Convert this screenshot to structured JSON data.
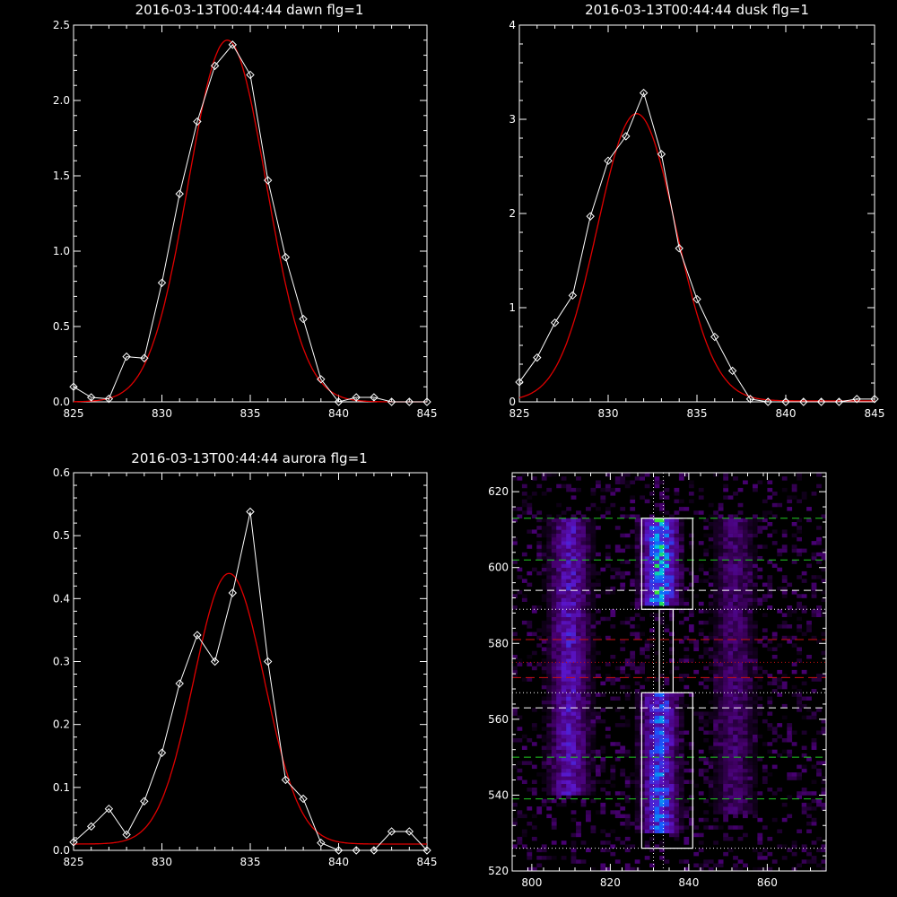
{
  "colors": {
    "background": "#000000",
    "axes": "#ffffff",
    "data": "#ffffff",
    "fit": "#e00000",
    "hline_green": "#22cc22",
    "hline_white": "#ffffff",
    "hline_red": "#cc1111"
  },
  "chart_data": [
    {
      "id": "dawn",
      "type": "line",
      "title": "2016-03-13T00:44:44 dawn flg=1",
      "xlim": [
        825,
        845
      ],
      "ylim": [
        0,
        2.5
      ],
      "xticks": [
        "825",
        "830",
        "835",
        "840",
        "845"
      ],
      "yticks": [
        "0.0",
        "0.5",
        "1.0",
        "1.5",
        "2.0",
        "2.5"
      ],
      "grid": false,
      "series": [
        {
          "kind": "measured",
          "marker": "diamond",
          "x": [
            825,
            826,
            827,
            828,
            829,
            830,
            831,
            832,
            833,
            834,
            835,
            836,
            837,
            838,
            839,
            840,
            841,
            842,
            843,
            844,
            845
          ],
          "y": [
            0.1,
            0.03,
            0.02,
            0.3,
            0.29,
            0.79,
            1.38,
            1.86,
            2.23,
            2.37,
            2.17,
            1.47,
            0.96,
            0.55,
            0.15,
            0.0,
            0.03,
            0.03,
            0.0,
            0.0,
            0.0
          ]
        },
        {
          "kind": "fit",
          "amplitude": 2.4,
          "center": 833.7,
          "sigma": 2.2,
          "offset": 0.0
        }
      ]
    },
    {
      "id": "dusk",
      "type": "line",
      "title": "2016-03-13T00:44:44 dusk flg=1",
      "xlim": [
        825,
        845
      ],
      "ylim": [
        0,
        4
      ],
      "xticks": [
        "825",
        "830",
        "835",
        "840",
        "845"
      ],
      "yticks": [
        "0",
        "1",
        "2",
        "3",
        "4"
      ],
      "grid": false,
      "series": [
        {
          "kind": "measured",
          "marker": "diamond",
          "x": [
            825,
            826,
            827,
            828,
            829,
            830,
            831,
            832,
            833,
            834,
            835,
            836,
            837,
            838,
            839,
            840,
            841,
            842,
            843,
            844,
            845
          ],
          "y": [
            0.21,
            0.47,
            0.84,
            1.13,
            1.97,
            2.56,
            2.82,
            3.28,
            2.63,
            1.63,
            1.09,
            0.69,
            0.33,
            0.03,
            0.0,
            0.0,
            0.0,
            0.0,
            0.0,
            0.03,
            0.03
          ]
        },
        {
          "kind": "fit",
          "amplitude": 3.05,
          "center": 831.6,
          "sigma": 2.2,
          "offset": 0.01
        }
      ]
    },
    {
      "id": "aurora",
      "type": "line",
      "title": "2016-03-13T00:44:44 aurora flg=1",
      "xlim": [
        825,
        845
      ],
      "ylim": [
        0,
        0.6
      ],
      "xticks": [
        "825",
        "830",
        "835",
        "840",
        "845"
      ],
      "yticks": [
        "0.0",
        "0.1",
        "0.2",
        "0.3",
        "0.4",
        "0.5",
        "0.6"
      ],
      "grid": false,
      "series": [
        {
          "kind": "measured",
          "marker": "diamond",
          "x": [
            825,
            826,
            827,
            828,
            829,
            830,
            831,
            832,
            833,
            834,
            835,
            836,
            837,
            838,
            839,
            840,
            841,
            842,
            843,
            844,
            845
          ],
          "y": [
            0.013,
            0.038,
            0.066,
            0.025,
            0.078,
            0.155,
            0.265,
            0.342,
            0.3,
            0.409,
            0.538,
            0.3,
            0.112,
            0.082,
            0.012,
            0.0,
            0.0,
            0.0,
            0.03,
            0.03,
            0.0
          ]
        },
        {
          "kind": "fit",
          "amplitude": 0.43,
          "center": 833.8,
          "sigma": 2.0,
          "offset": 0.01
        }
      ]
    },
    {
      "id": "image",
      "type": "heatmap",
      "title": "",
      "xlim": [
        795,
        875
      ],
      "ylim": [
        520,
        625
      ],
      "xticks": [
        "800",
        "820",
        "840",
        "860"
      ],
      "yticks": [
        "520",
        "540",
        "560",
        "580",
        "600",
        "620"
      ],
      "grid": false,
      "emission_columns": [
        {
          "center": 809,
          "width": 10,
          "rows": [
            [
              540,
              612,
              0.35
            ]
          ]
        },
        {
          "center": 832,
          "width": 9,
          "rows": [
            [
              590,
              612,
              0.75
            ],
            [
              530,
              566,
              0.55
            ]
          ]
        },
        {
          "center": 851,
          "width": 10,
          "rows": [
            [
              535,
              612,
              0.18
            ]
          ]
        }
      ],
      "hlines": [
        {
          "y": 613,
          "style": "green-dashed"
        },
        {
          "y": 602,
          "style": "green-dashed"
        },
        {
          "y": 594,
          "style": "white-dashed"
        },
        {
          "y": 589,
          "style": "white-dotted"
        },
        {
          "y": 581,
          "style": "red-dashed"
        },
        {
          "y": 575,
          "style": "red-dotted"
        },
        {
          "y": 571,
          "style": "red-dashed"
        },
        {
          "y": 567,
          "style": "white-dotted"
        },
        {
          "y": 563,
          "style": "white-dashed"
        },
        {
          "y": 550,
          "style": "green-dashed"
        },
        {
          "y": 539,
          "style": "green-dashed"
        },
        {
          "y": 526,
          "style": "white-dotted"
        }
      ],
      "vlines": [
        {
          "x": 831,
          "style": "white-dotted"
        },
        {
          "x": 833.5,
          "style": "white-dotted"
        }
      ],
      "boxes": [
        {
          "x0": 828,
          "x1": 841,
          "y0": 589,
          "y1": 613
        },
        {
          "x0": 828,
          "x1": 841,
          "y0": 526,
          "y1": 567
        },
        {
          "x0": 832.5,
          "x1": 836,
          "y0": 567,
          "y1": 589
        }
      ]
    }
  ]
}
